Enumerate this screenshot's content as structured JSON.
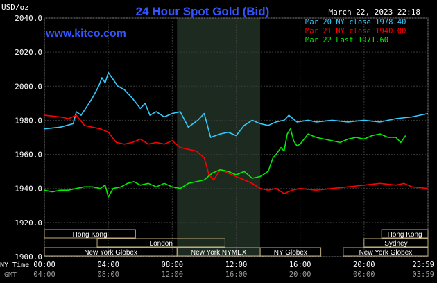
{
  "chart_data": {
    "type": "line",
    "title": "24 Hour Spot Gold (Bid)",
    "watermark": "www.kitco.com",
    "timestamp": "March 22, 2023 22:18",
    "ylabel": "USD/oz",
    "ylim": [
      1900,
      2040
    ],
    "yticks": [
      1900,
      1920,
      1940,
      1960,
      1980,
      2000,
      2020,
      2040
    ],
    "ytick_labels": [
      "1900.0",
      "1920.0",
      "1940.0",
      "1960.0",
      "1980.0",
      "2000.0",
      "2020.0",
      "2040.0"
    ],
    "xlim": [
      0,
      24
    ],
    "x_row_label_ny": "NY Time",
    "x_row_label_gmt": "GMT",
    "xticks_ny": [
      "00:00",
      "04:00",
      "08:00",
      "12:00",
      "16:00",
      "20:00",
      "23:59"
    ],
    "xticks_gmt": [
      "04:00",
      "08:00",
      "12:00",
      "16:00",
      "20:00",
      "00:00",
      "03:59"
    ],
    "shaded_session": {
      "label": "New York NYMEX",
      "start": 8.3,
      "end": 13.5
    },
    "series": [
      {
        "name": "Mar 20 NY close 1978.40",
        "color": "#33ccff",
        "x": [
          0,
          1,
          1.8,
          2.0,
          2.3,
          3.0,
          3.4,
          3.6,
          3.8,
          4.0,
          4.3,
          4.6,
          5.0,
          5.5,
          6.0,
          6.3,
          6.6,
          7.0,
          7.5,
          8.0,
          8.5,
          9.0,
          9.3,
          9.6,
          10.0,
          10.4,
          11.0,
          11.5,
          12.0,
          12.5,
          13.0,
          13.5,
          14.0,
          14.5,
          15.0,
          15.3,
          15.8,
          16.5,
          17.0,
          18.0,
          19.0,
          20.0,
          21.0,
          22.0,
          23.0,
          24.0
        ],
        "values": [
          1975,
          1976,
          1978,
          1985,
          1983,
          1993,
          2000,
          2005,
          2002,
          2008,
          2004,
          2000,
          1998,
          1993,
          1987,
          1990,
          1983,
          1985,
          1982,
          1984,
          1985,
          1976,
          1978,
          1980,
          1984,
          1970,
          1972,
          1973,
          1971,
          1977,
          1980,
          1978,
          1977,
          1979,
          1980,
          1983,
          1979,
          1980,
          1979,
          1980,
          1979,
          1980,
          1979,
          1981,
          1982,
          1984
        ]
      },
      {
        "name": "Mar 21 NY close 1940.00",
        "color": "#ff0000",
        "x": [
          0,
          1,
          1.5,
          2.0,
          2.5,
          3.0,
          3.5,
          4.0,
          4.5,
          5.0,
          5.5,
          6.0,
          6.5,
          7.0,
          7.5,
          8.0,
          8.5,
          9.0,
          9.5,
          10.0,
          10.3,
          10.6,
          11.0,
          11.5,
          12.0,
          12.5,
          13.0,
          13.5,
          14.0,
          14.5,
          15.0,
          15.5,
          16.0,
          17.0,
          18.0,
          19.0,
          20.0,
          21.0,
          22.0,
          22.5,
          23.0,
          24.0
        ],
        "values": [
          1983,
          1982,
          1981,
          1983,
          1977,
          1976,
          1975,
          1973,
          1967,
          1966,
          1967,
          1969,
          1966,
          1967,
          1966,
          1968,
          1964,
          1963,
          1962,
          1958,
          1948,
          1945,
          1951,
          1949,
          1947,
          1945,
          1943,
          1940,
          1939,
          1940,
          1937,
          1939,
          1940,
          1939,
          1940,
          1941,
          1942,
          1943,
          1942,
          1943,
          1941,
          1940
        ]
      },
      {
        "name": "Mar 22 Last 1971.60",
        "color": "#00ee00",
        "x": [
          0,
          0.5,
          1.0,
          1.5,
          2.0,
          2.5,
          3.0,
          3.5,
          3.8,
          4.0,
          4.3,
          4.8,
          5.2,
          5.6,
          6.0,
          6.5,
          7.0,
          7.5,
          8.0,
          8.5,
          9.0,
          9.5,
          10.0,
          10.5,
          11.0,
          11.5,
          12.0,
          12.5,
          13.0,
          13.5,
          14.0,
          14.3,
          14.5,
          14.8,
          15.0,
          15.2,
          15.4,
          15.6,
          15.8,
          16.0,
          16.5,
          17.0,
          17.5,
          18.0,
          18.5,
          19.0,
          19.5,
          20.0,
          20.5,
          21.0,
          21.5,
          22.0,
          22.3,
          22.6
        ],
        "values": [
          1939,
          1938,
          1939,
          1939,
          1940,
          1941,
          1941,
          1940,
          1942,
          1935,
          1940,
          1941,
          1943,
          1944,
          1942,
          1943,
          1941,
          1943,
          1941,
          1940,
          1943,
          1944,
          1945,
          1949,
          1951,
          1950,
          1948,
          1950,
          1946,
          1947,
          1950,
          1958,
          1960,
          1964,
          1962,
          1972,
          1975,
          1968,
          1965,
          1966,
          1972,
          1970,
          1969,
          1968,
          1967,
          1969,
          1970,
          1969,
          1971,
          1972,
          1970,
          1970,
          1967,
          1971
        ]
      }
    ],
    "sessions": [
      {
        "label": "Hong Kong",
        "start": 0,
        "end": 5.7,
        "row": 0
      },
      {
        "label": "Hong Kong",
        "start": 21.1,
        "end": 24,
        "row": 0
      },
      {
        "label": "London",
        "start": 3.3,
        "end": 11.3,
        "row": 1
      },
      {
        "label": "Sydney",
        "start": 20.0,
        "end": 24,
        "row": 1
      },
      {
        "label": "New York Globex",
        "start": 0,
        "end": 8.3,
        "row": 2
      },
      {
        "label": "New York NYMEX",
        "start": 8.3,
        "end": 13.5,
        "row": 2
      },
      {
        "label": "NY Globex",
        "start": 13.5,
        "end": 17.3,
        "row": 2
      },
      {
        "label": "New York Globex",
        "start": 18.7,
        "end": 24,
        "row": 2
      }
    ]
  }
}
